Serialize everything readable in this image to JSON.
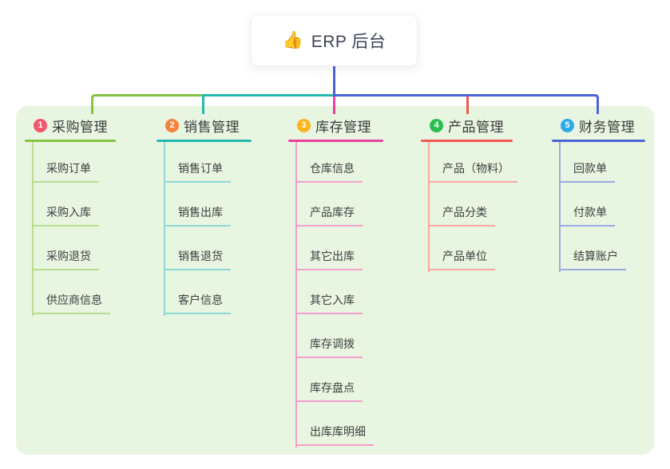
{
  "root": {
    "icon": "👍",
    "label": "ERP 后台"
  },
  "canvas": {
    "background": "#ffffff",
    "panel_background": "#e7f5e1",
    "root_line_color": "#4a63d5"
  },
  "branches": [
    {
      "badge": "1",
      "label": "采购管理",
      "badge_color": "#f4566b",
      "line_color": "#84c340",
      "child_line_color": "#b9dd90",
      "children": [
        "采购订单",
        "采购入库",
        "采购退货",
        "供应商信息"
      ]
    },
    {
      "badge": "2",
      "label": "销售管理",
      "badge_color": "#f5833f",
      "line_color": "#23b8b0",
      "child_line_color": "#8ed9d4",
      "children": [
        "销售订单",
        "销售出库",
        "销售退货",
        "客户信息"
      ]
    },
    {
      "badge": "3",
      "label": "库存管理",
      "badge_color": "#f9b41e",
      "line_color": "#e8419d",
      "child_line_color": "#f3a0cb",
      "children": [
        "仓库信息",
        "产品库存",
        "其它出库",
        "其它入库",
        "库存调拨",
        "库存盘点",
        "出库库明细"
      ]
    },
    {
      "badge": "4",
      "label": "产品管理",
      "badge_color": "#2cbd52",
      "line_color": "#f2594e",
      "child_line_color": "#f8a8a2",
      "children": [
        "产品（物料）",
        "产品分类",
        "产品单位"
      ]
    },
    {
      "badge": "5",
      "label": "财务管理",
      "badge_color": "#2caae9",
      "line_color": "#4a63d5",
      "child_line_color": "#9cabdf",
      "children": [
        "回款单",
        "付款单",
        "结算账户"
      ]
    }
  ]
}
